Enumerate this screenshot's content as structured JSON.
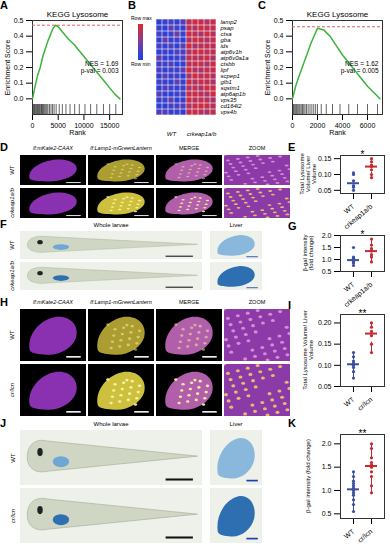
{
  "images": [
    {
      "panel": "D",
      "columns": [
        "lf:mKate2-CAAX",
        "lf:Lamp1-mGreenLantern",
        "MERGE",
        "ZOOM"
      ],
      "rows": [
        "WT",
        "crkeap1a/b"
      ]
    },
    {
      "panel": "F",
      "columns": [
        "Whole larvae",
        "Liver"
      ],
      "rows": [
        "WT",
        "crkeap1a/b"
      ]
    },
    {
      "panel": "H",
      "columns": [
        "lf:mKate2-CAAX",
        "lf:Lamp1-mGreenLantern",
        "MERGE",
        "ZOOM"
      ],
      "rows": [
        "WT",
        "cr/lcn"
      ]
    },
    {
      "panel": "J",
      "columns": [
        "Whole larvae",
        "Liver"
      ],
      "rows": [
        "WT",
        "cr/lcn"
      ]
    }
  ],
  "chart_data": [
    {
      "panel": "A",
      "type": "line",
      "title": "KEGG Lysosome",
      "xlabel": "Rank",
      "ylabel": "Enrichment Score",
      "annotation": [
        "NES = 1.69",
        "p-val = 0.003"
      ],
      "color": "#3cb43c",
      "x": [
        0,
        500,
        1000,
        1500,
        2000,
        2500,
        3000,
        3500,
        4000,
        4500,
        5000,
        6000,
        7000,
        8000,
        9000,
        10000,
        11000,
        12000,
        13000,
        14000,
        15000,
        16000,
        17000
      ],
      "values": [
        0,
        0.08,
        0.15,
        0.2,
        0.27,
        0.32,
        0.37,
        0.41,
        0.45,
        0.47,
        0.46,
        0.42,
        0.38,
        0.35,
        0.31,
        0.27,
        0.23,
        0.19,
        0.15,
        0.11,
        0.07,
        0.03,
        0
      ],
      "max_es": 0.47,
      "hits": [
        150,
        300,
        420,
        600,
        800,
        950,
        1100,
        1250,
        1400,
        1600,
        1750,
        1900,
        2050,
        2200,
        2400,
        2600,
        2800,
        3000,
        3300,
        3600,
        3900,
        4200,
        4600,
        5200,
        5800,
        6500,
        7300,
        8200,
        9100,
        10200,
        11300,
        12500,
        13800,
        15000,
        16200
      ],
      "xlim": [
        0,
        17500
      ],
      "xticks": [
        0,
        5000,
        10000,
        15000
      ],
      "ylim": [
        -0.1,
        0.5
      ],
      "yticks": [
        {
          "value": 0,
          "label": "0.0"
        },
        0.1,
        0.2,
        0.3,
        0.4,
        0.5
      ]
    },
    {
      "panel": "B",
      "type": "heatmap",
      "rows": [
        "lamp2",
        "psap",
        "ctsa",
        "gba",
        "ids",
        "atp6v1h",
        "atp6v0a1a",
        "ctsbb",
        "lipf",
        "scpep1",
        "glb1",
        "sqstm1",
        "atp6ap1b",
        "vps35",
        "cd164l2",
        "vps4b"
      ],
      "column_groups": [
        "WT",
        "crkeap1a/b"
      ],
      "columns": [
        "WT",
        "WT",
        "WT",
        "WT",
        "WT",
        "crkeap1a/b",
        "crkeap1a/b",
        "crkeap1a/b",
        "crkeap1a/b",
        "crkeap1a/b"
      ],
      "cells": [
        [
          -1.2,
          -1.0,
          -0.8,
          -1.1,
          -0.6,
          0.9,
          1.2,
          1.0,
          0.8,
          1.1
        ],
        [
          -1.0,
          -1.2,
          -0.5,
          -0.9,
          -1.1,
          1.0,
          0.7,
          1.3,
          0.9,
          1.0
        ],
        [
          -0.8,
          -1.1,
          -1.0,
          -0.3,
          -0.9,
          1.1,
          0.9,
          0.6,
          1.2,
          0.8
        ],
        [
          -1.1,
          -0.4,
          -1.0,
          -0.9,
          -1.2,
          0.8,
          1.2,
          1.0,
          0.7,
          1.1
        ],
        [
          -0.9,
          -1.0,
          -0.7,
          -1.2,
          -0.5,
          1.2,
          0.6,
          0.9,
          1.0,
          0.9
        ],
        [
          -1.2,
          -0.9,
          -1.1,
          -0.6,
          -0.8,
          0.7,
          1.1,
          1.2,
          0.8,
          1.0
        ],
        [
          -0.5,
          -1.1,
          -1.2,
          -1.0,
          -0.7,
          1.0,
          0.9,
          0.8,
          1.2,
          0.6
        ],
        [
          -1.0,
          -0.8,
          -0.6,
          -1.2,
          -1.1,
          0.9,
          1.0,
          1.1,
          0.6,
          1.2
        ],
        [
          -0.7,
          -1.2,
          -0.9,
          -1.0,
          -0.4,
          1.2,
          0.8,
          0.7,
          1.0,
          1.0
        ],
        [
          -1.1,
          -0.6,
          -1.0,
          -0.8,
          -1.2,
          0.6,
          1.2,
          0.9,
          1.1,
          0.8
        ],
        [
          -0.9,
          -1.0,
          -1.1,
          -0.5,
          -1.0,
          1.1,
          0.7,
          1.2,
          0.9,
          0.7
        ],
        [
          -1.2,
          -0.7,
          -0.8,
          -1.1,
          -0.9,
          0.8,
          1.0,
          0.6,
          1.2,
          1.1
        ],
        [
          -0.6,
          -1.1,
          -1.2,
          -0.9,
          -0.8,
          1.0,
          1.1,
          0.9,
          0.7,
          1.2
        ],
        [
          -1.0,
          -0.9,
          -0.5,
          -1.2,
          -1.1,
          1.2,
          0.9,
          1.0,
          0.8,
          0.6
        ],
        [
          -1.1,
          -1.2,
          -0.8,
          -0.7,
          -0.6,
          0.7,
          1.0,
          1.2,
          1.1,
          0.9
        ],
        [
          -0.8,
          -0.6,
          -1.1,
          -1.0,
          -1.2,
          1.1,
          1.2,
          0.8,
          0.6,
          1.0
        ]
      ],
      "color_range": [
        -1.5,
        1.5
      ],
      "color_labels": [
        "Row max",
        "Row min"
      ]
    },
    {
      "panel": "C",
      "type": "line",
      "title": "KEGG Lysosome",
      "xlabel": "Rank",
      "ylabel": "Enrichment Score",
      "annotation": [
        "NES = 1.62",
        "p-val = 0.005"
      ],
      "color": "#3cb43c",
      "x": [
        0,
        250,
        500,
        1000,
        1500,
        2000,
        2500,
        3000,
        3500,
        4000,
        4500,
        5000,
        5500,
        6000,
        6500,
        7000
      ],
      "values": [
        0,
        0.08,
        0.14,
        0.25,
        0.36,
        0.45,
        0.44,
        0.4,
        0.34,
        0.28,
        0.23,
        0.18,
        0.13,
        0.08,
        0.04,
        0
      ],
      "max_es": 0.46,
      "hits": [
        60,
        120,
        200,
        280,
        350,
        430,
        520,
        600,
        700,
        800,
        900,
        1000,
        1120,
        1250,
        1400,
        1550,
        1700,
        1850,
        2000,
        2300,
        2700,
        3200,
        3800,
        4500,
        5200,
        6000,
        6800
      ],
      "xlim": [
        0,
        7200
      ],
      "xticks": [
        0,
        2000,
        4000,
        6000
      ],
      "ylim": [
        -0.1,
        0.5
      ],
      "yticks": [
        {
          "value": 0,
          "label": "0.0"
        },
        0.1,
        0.2,
        0.3,
        0.4,
        0.5
      ]
    },
    {
      "panel": "E",
      "type": "box",
      "ylabel": "Total Lysosome Volume/ Liver Volume",
      "significance": "*",
      "categories": [
        "WT",
        "crkeap1a/b"
      ],
      "colors": [
        "#3d4fa0",
        "#c42a30"
      ],
      "values": [
        [
          0.05,
          0.06,
          0.065,
          0.08,
          0.1,
          0.105
        ],
        [
          0.09,
          0.1,
          0.115,
          0.125,
          0.13,
          0.14,
          0.15
        ]
      ],
      "ylim": [
        0.04,
        0.16
      ],
      "yticks": [
        0.05,
        {
          "value": 0.1,
          "label": "0.10"
        },
        0.15
      ]
    },
    {
      "panel": "G",
      "type": "box",
      "ylabel": "β-gal intensity (fold change)",
      "significance": "*",
      "categories": [
        "WT",
        "crkeap1a/b"
      ],
      "colors": [
        "#3d4fa0",
        "#c42a30"
      ],
      "values": [
        [
          0.75,
          0.85,
          0.9,
          0.95,
          1.0,
          1.05,
          1.1,
          1.5
        ],
        [
          0.9,
          1.1,
          1.2,
          1.35,
          1.45,
          1.6,
          1.85
        ]
      ],
      "ylim": [
        0.5,
        2.0
      ],
      "yticks": [
        0.5,
        {
          "value": 1,
          "label": "1.0"
        },
        1.5,
        {
          "value": 2,
          "label": "2.0"
        }
      ]
    },
    {
      "panel": "I",
      "type": "box",
      "ylabel": "Total Lysosome Volume/ Liver Volume",
      "significance": "**",
      "categories": [
        "WT",
        "cr/lcn"
      ],
      "colors": [
        "#3d4fa0",
        "#c42a30"
      ],
      "values": [
        [
          0.07,
          0.085,
          0.095,
          0.1,
          0.105,
          0.11,
          0.12,
          0.13
        ],
        [
          0.13,
          0.15,
          0.17,
          0.18,
          0.19,
          0.2
        ]
      ],
      "ylim": [
        0.05,
        0.22
      ],
      "yticks": [
        0.05,
        {
          "value": 0.1,
          "label": "0.10"
        },
        0.15,
        {
          "value": 0.2,
          "label": "0.20"
        }
      ]
    },
    {
      "panel": "K",
      "type": "box",
      "ylabel": "β-gal intensity (fold change)",
      "significance": "**",
      "categories": [
        "WT",
        "cr/lcn"
      ],
      "colors": [
        "#3d4fa0",
        "#c42a30"
      ],
      "values": [
        [
          0.55,
          0.7,
          0.8,
          0.9,
          0.95,
          1.0,
          1.05,
          1.1,
          1.15,
          1.2,
          1.3,
          1.4
        ],
        [
          0.95,
          1.1,
          1.3,
          1.4,
          1.5,
          1.55,
          1.6,
          1.7,
          1.9,
          2.0
        ]
      ],
      "ylim": [
        0.4,
        2.2
      ],
      "yticks": [
        0.5,
        {
          "value": 1,
          "label": "1.0"
        },
        1.5,
        {
          "value": 2,
          "label": "2.0"
        }
      ]
    }
  ]
}
